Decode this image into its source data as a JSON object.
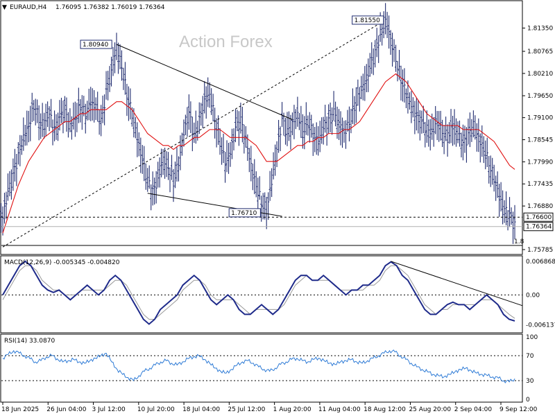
{
  "header": {
    "symbol": "EURAUD,H4",
    "ohlc": "1.76095 1.76382 1.76019 1.76364"
  },
  "watermark": "Action Forex",
  "macd_label": "MACD(12,26,9) -0.005345 -0.004820",
  "rsi_label": "RSI(14) 33.0870",
  "colors": {
    "price": "#1e2a6e",
    "ma": "#e01010",
    "macd": "#1e2a8a",
    "signal": "#9a9a9a",
    "rsi": "#2e7bd6",
    "line": "#000000"
  },
  "chart_data": [
    {
      "type": "candlestick",
      "title": "EURAUD,H4",
      "ylim": [
        1.7575,
        1.8195
      ],
      "y_ticks": [
        "1.81350",
        "1.80765",
        "1.80210",
        "1.79650",
        "1.79100",
        "1.78545",
        "1.77990",
        "1.77435",
        "1.76880",
        "1.75785"
      ],
      "x_ticks": [
        "18 Jun 2025",
        "26 Jun 04:00",
        "3 Jul 12:00",
        "10 Jul 20:00",
        "18 Jul 04:00",
        "25 Jul 12:00",
        "1 Aug 20:00",
        "11 Aug 04:00",
        "18 Aug 12:00",
        "25 Aug 20:00",
        "2 Sep 04:00",
        "9 Sep 12:00"
      ],
      "close_series": [
        1.766,
        1.772,
        1.776,
        1.781,
        1.786,
        1.789,
        1.794,
        1.791,
        1.789,
        1.792,
        1.788,
        1.79,
        1.793,
        1.789,
        1.791,
        1.794,
        1.792,
        1.795,
        1.793,
        1.79,
        1.797,
        1.802,
        1.809,
        1.804,
        1.797,
        1.792,
        1.786,
        1.78,
        1.775,
        1.772,
        1.775,
        1.781,
        1.779,
        1.775,
        1.78,
        1.787,
        1.792,
        1.786,
        1.79,
        1.795,
        1.797,
        1.791,
        1.785,
        1.78,
        1.782,
        1.788,
        1.79,
        1.785,
        1.779,
        1.774,
        1.77,
        1.768,
        1.775,
        1.783,
        1.79,
        1.787,
        1.789,
        1.792,
        1.788,
        1.79,
        1.787,
        1.785,
        1.788,
        1.79,
        1.792,
        1.789,
        1.787,
        1.79,
        1.794,
        1.797,
        1.8,
        1.803,
        1.807,
        1.812,
        1.815,
        1.811,
        1.806,
        1.801,
        1.797,
        1.794,
        1.791,
        1.789,
        1.788,
        1.787,
        1.79,
        1.788,
        1.786,
        1.789,
        1.787,
        1.784,
        1.786,
        1.789,
        1.786,
        1.783,
        1.78,
        1.776,
        1.771,
        1.768,
        1.766,
        1.7636
      ],
      "ma_series": [
        1.762,
        1.766,
        1.77,
        1.774,
        1.777,
        1.78,
        1.782,
        1.784,
        1.786,
        1.787,
        1.788,
        1.789,
        1.79,
        1.79,
        1.791,
        1.792,
        1.792,
        1.793,
        1.793,
        1.793,
        1.793,
        1.794,
        1.795,
        1.795,
        1.794,
        1.793,
        1.791,
        1.789,
        1.787,
        1.786,
        1.785,
        1.784,
        1.784,
        1.783,
        1.784,
        1.784,
        1.785,
        1.786,
        1.786,
        1.787,
        1.788,
        1.788,
        1.788,
        1.787,
        1.786,
        1.786,
        1.786,
        1.786,
        1.785,
        1.784,
        1.782,
        1.78,
        1.78,
        1.78,
        1.781,
        1.782,
        1.783,
        1.784,
        1.784,
        1.785,
        1.785,
        1.786,
        1.786,
        1.787,
        1.787,
        1.787,
        1.788,
        1.788,
        1.789,
        1.79,
        1.792,
        1.794,
        1.796,
        1.798,
        1.8,
        1.801,
        1.802,
        1.801,
        1.8,
        1.798,
        1.796,
        1.794,
        1.792,
        1.791,
        1.79,
        1.789,
        1.789,
        1.789,
        1.789,
        1.788,
        1.788,
        1.788,
        1.788,
        1.787,
        1.786,
        1.785,
        1.783,
        1.781,
        1.779,
        1.778
      ],
      "annotations": [
        {
          "text": "1.80940"
        },
        {
          "text": "1.81550"
        },
        {
          "text": "1.76710"
        }
      ],
      "level_labels": [
        "1.76600",
        "1.76364"
      ],
      "level_values": [
        1.766,
        1.76364
      ],
      "support_value": 1.7589,
      "small_label": "1.8"
    },
    {
      "type": "line",
      "title": "MACD(12,26,9) -0.005345 -0.004820",
      "ylim": [
        -0.0075,
        0.0076
      ],
      "y_ticks": [
        "0.006868",
        "0.00",
        "-0.006137"
      ],
      "macd_series": [
        0.0,
        0.002,
        0.004,
        0.006,
        0.0069,
        0.006,
        0.004,
        0.002,
        0.001,
        0.0005,
        0.001,
        0.0,
        -0.001,
        0.0,
        0.001,
        0.002,
        0.001,
        0.0,
        0.001,
        0.003,
        0.004,
        0.003,
        0.001,
        -0.001,
        -0.003,
        -0.005,
        -0.006,
        -0.005,
        -0.003,
        -0.002,
        -0.001,
        0.0,
        0.002,
        0.003,
        0.004,
        0.003,
        0.001,
        -0.001,
        -0.002,
        -0.001,
        0.0,
        -0.001,
        -0.003,
        -0.004,
        -0.004,
        -0.003,
        -0.002,
        -0.003,
        -0.004,
        -0.003,
        -0.001,
        0.001,
        0.003,
        0.004,
        0.004,
        0.003,
        0.003,
        0.004,
        0.003,
        0.002,
        0.001,
        0.0,
        0.001,
        0.001,
        0.002,
        0.002,
        0.003,
        0.004,
        0.006,
        0.0068,
        0.006,
        0.004,
        0.003,
        0.001,
        -0.001,
        -0.003,
        -0.004,
        -0.004,
        -0.003,
        -0.002,
        -0.0015,
        -0.002,
        -0.002,
        -0.003,
        -0.002,
        -0.001,
        0.0,
        -0.001,
        -0.002,
        -0.004,
        -0.005,
        -0.005345
      ],
      "signal_series": [
        -0.001,
        0.001,
        0.003,
        0.005,
        0.006,
        0.006,
        0.005,
        0.003,
        0.002,
        0.001,
        0.001,
        0.0,
        0.0,
        0.0,
        0.001,
        0.001,
        0.001,
        0.001,
        0.001,
        0.002,
        0.003,
        0.003,
        0.002,
        0.0,
        -0.002,
        -0.004,
        -0.005,
        -0.005,
        -0.004,
        -0.003,
        -0.002,
        -0.001,
        0.001,
        0.002,
        0.003,
        0.003,
        0.002,
        0.0,
        -0.001,
        -0.001,
        -0.001,
        -0.001,
        -0.002,
        -0.003,
        -0.004,
        -0.003,
        -0.003,
        -0.003,
        -0.003,
        -0.003,
        -0.002,
        0.0,
        0.002,
        0.003,
        0.004,
        0.003,
        0.003,
        0.003,
        0.003,
        0.002,
        0.001,
        0.001,
        0.001,
        0.001,
        0.001,
        0.002,
        0.002,
        0.003,
        0.005,
        0.006,
        0.006,
        0.005,
        0.004,
        0.002,
        0.0,
        -0.002,
        -0.003,
        -0.004,
        -0.003,
        -0.003,
        -0.002,
        -0.002,
        -0.002,
        -0.002,
        -0.002,
        -0.001,
        -0.001,
        -0.001,
        -0.002,
        -0.003,
        -0.004,
        -0.00482
      ]
    },
    {
      "type": "line",
      "title": "RSI(14) 33.0870",
      "ylim": [
        0,
        100
      ],
      "y_ticks": [
        "100",
        "70",
        "30",
        "0"
      ],
      "rsi_series": [
        66,
        72,
        78,
        74,
        70,
        65,
        60,
        62,
        68,
        70,
        65,
        60,
        62,
        64,
        60,
        58,
        62,
        66,
        70,
        74,
        60,
        48,
        40,
        35,
        30,
        38,
        45,
        50,
        55,
        60,
        62,
        58,
        55,
        60,
        65,
        68,
        70,
        64,
        58,
        50,
        45,
        42,
        48,
        55,
        60,
        62,
        58,
        52,
        48,
        45,
        50,
        56,
        60,
        64,
        66,
        62,
        60,
        64,
        66,
        62,
        58,
        56,
        60,
        62,
        64,
        60,
        58,
        62,
        66,
        70,
        74,
        78,
        76,
        70,
        64,
        58,
        52,
        48,
        44,
        40,
        38,
        36,
        40,
        44,
        48,
        50,
        46,
        42,
        40,
        38,
        36,
        34,
        30,
        28,
        33.087
      ]
    }
  ]
}
